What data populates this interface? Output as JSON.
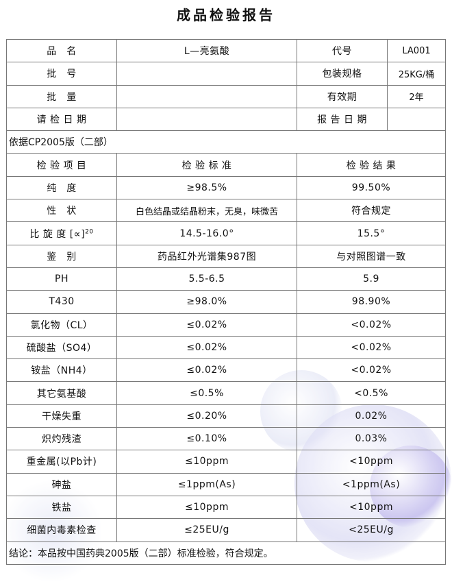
{
  "title": "成品检验报告",
  "info": [
    {
      "label": "品　名",
      "value": "L—亮氨酸",
      "label2": "代号",
      "value2": "LA001"
    },
    {
      "label": "批　号",
      "value": "",
      "label2": "包装规格",
      "value2": "25KG/桶"
    },
    {
      "label": "批　量",
      "value": "",
      "label2": "有效期",
      "value2": "2年"
    },
    {
      "label": "请 检 日 期",
      "value": "",
      "label2": "报 告 日 期",
      "value2": ""
    }
  ],
  "basis": "依据CP2005版（二部）",
  "headers": [
    "检 验 项 目",
    "检 验 标 准",
    "检 验 结 果"
  ],
  "rows": [
    {
      "item": "纯　度",
      "standard": "≥98.5%",
      "result": "99.50%"
    },
    {
      "item": "性　状",
      "standard": "白色结晶或结晶粉末，无臭，味微苦",
      "result": "符合规定"
    },
    {
      "item": "比 旋 度 [∝]",
      "item_sup": "20",
      "standard": "14.5-16.0°",
      "result": "15.5°"
    },
    {
      "item": "鉴　别",
      "standard": "药品红外光谱集987图",
      "result": "与对照图谱一致"
    },
    {
      "item": "PH",
      "standard": "5.5-6.5",
      "result": "5.9"
    },
    {
      "item": "T430",
      "standard": "≥98.0%",
      "result": "98.90%"
    },
    {
      "item": "氯化物（CL）",
      "standard": "≤0.02%",
      "result": "<0.02%"
    },
    {
      "item": "硫酸盐（SO4）",
      "standard": "≤0.02%",
      "result": "<0.02%"
    },
    {
      "item": "铵盐（NH4）",
      "standard": "≤0.02%",
      "result": "<0.02%"
    },
    {
      "item": "其它氨基酸",
      "standard": "≤0.5%",
      "result": "<0.5%"
    },
    {
      "item": "干燥失重",
      "standard": "≤0.20%",
      "result": "0.02%"
    },
    {
      "item": "炽灼残渣",
      "standard": "≤0.10%",
      "result": "0.03%"
    },
    {
      "item": "重金属(以Pb计)",
      "standard": "≤10ppm",
      "result": "<10ppm"
    },
    {
      "item": "砷盐",
      "standard": "≤1ppm(As)",
      "result": "<1ppm(As)"
    },
    {
      "item": "铁盐",
      "standard": "≤10ppm",
      "result": "<10ppm"
    },
    {
      "item": "细菌内毒素检查",
      "standard": "≤25EU/g",
      "result": "<25EU/g"
    }
  ],
  "conclusion": "结论：本品按中国药典2005版（二部）标准检验，符合规定。"
}
